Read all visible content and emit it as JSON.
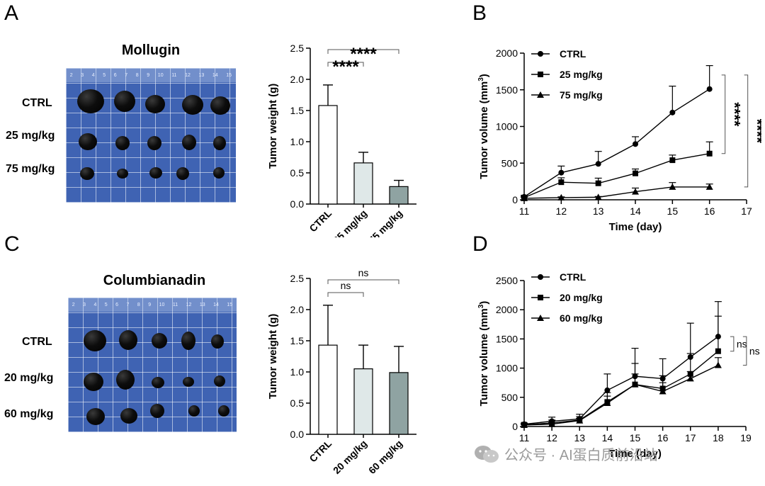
{
  "panels": {
    "A": {
      "letter": "A",
      "photo_title": "Mollugin",
      "rows": [
        "CTRL",
        "25 mg/kg",
        "75 mg/kg"
      ],
      "ruler_ticks": [
        "2",
        "3",
        "4",
        "5",
        "6",
        "7",
        "8",
        "9",
        "10",
        "11",
        "12",
        "13",
        "14",
        "15"
      ]
    },
    "B": {
      "letter": "B"
    },
    "C": {
      "letter": "C",
      "photo_title": "Columbianadin",
      "rows": [
        "CTRL",
        "20 mg/kg",
        "60 mg/kg"
      ],
      "ruler_ticks": [
        "2",
        "3",
        "4",
        "5",
        "6",
        "7",
        "8",
        "9",
        "10",
        "11",
        "12",
        "13",
        "14",
        "15"
      ]
    },
    "D": {
      "letter": "D"
    }
  },
  "watermark": "公众号 · AI蛋白质前沿站",
  "chart_data": [
    {
      "id": "A-bar",
      "type": "bar",
      "categories": [
        "CTRL",
        "25 mg/kg",
        "75 mg/kg"
      ],
      "values": [
        1.58,
        0.66,
        0.28
      ],
      "errors": [
        0.33,
        0.17,
        0.1
      ],
      "colors": [
        "#ffffff",
        "#dfe8e8",
        "#8fa3a2"
      ],
      "ylabel": "Tumor weight (g)",
      "ylim": [
        0,
        2.5
      ],
      "yticks": [
        "0.0",
        "0.5",
        "1.0",
        "1.5",
        "2.0",
        "2.5"
      ],
      "brackets": [
        {
          "from": 0,
          "to": 1,
          "label": "****",
          "level": 1
        },
        {
          "from": 0,
          "to": 2,
          "label": "****",
          "level": 2
        }
      ]
    },
    {
      "id": "B-line",
      "type": "line",
      "xlabel": "Time (day)",
      "ylabel_main": "Tumor volume (mm",
      "ylabel_sup": "3",
      "ylabel_end": ")",
      "xlim": [
        11,
        17
      ],
      "ylim": [
        0,
        2000
      ],
      "xticks": [
        "11",
        "12",
        "13",
        "14",
        "15",
        "16",
        "17"
      ],
      "yticks": [
        "0",
        "500",
        "1000",
        "1500",
        "2000"
      ],
      "legend_position": "top-left",
      "series": [
        {
          "name": "CTRL",
          "marker": "circle",
          "x": [
            11,
            12,
            13,
            14,
            15,
            16
          ],
          "y": [
            40,
            370,
            490,
            760,
            1190,
            1510
          ],
          "err": [
            20,
            90,
            170,
            100,
            360,
            320
          ]
        },
        {
          "name": "25 mg/kg",
          "marker": "square",
          "x": [
            11,
            12,
            13,
            14,
            15,
            16
          ],
          "y": [
            30,
            240,
            225,
            360,
            540,
            630
          ],
          "err": [
            15,
            60,
            70,
            60,
            70,
            160
          ]
        },
        {
          "name": "75 mg/kg",
          "marker": "triangle",
          "x": [
            11,
            12,
            13,
            14,
            15,
            16
          ],
          "y": [
            20,
            30,
            35,
            110,
            175,
            175
          ],
          "err": [
            10,
            10,
            10,
            50,
            60,
            40
          ]
        }
      ],
      "significance": [
        {
          "from_series": 0,
          "to_series": 1,
          "label": "****"
        },
        {
          "from_series": 0,
          "to_series": 2,
          "label": "****"
        }
      ]
    },
    {
      "id": "C-bar",
      "type": "bar",
      "categories": [
        "CTRL",
        "20 mg/kg",
        "60 mg/kg"
      ],
      "values": [
        1.43,
        1.05,
        0.99
      ],
      "errors": [
        0.64,
        0.38,
        0.42
      ],
      "colors": [
        "#ffffff",
        "#dfe8e8",
        "#8fa3a2"
      ],
      "ylabel": "Tumor weight (g)",
      "ylim": [
        0,
        2.5
      ],
      "yticks": [
        "0.0",
        "0.5",
        "1.0",
        "1.5",
        "2.0",
        "2.5"
      ],
      "brackets": [
        {
          "from": 0,
          "to": 1,
          "label": "ns",
          "level": 1
        },
        {
          "from": 0,
          "to": 2,
          "label": "ns",
          "level": 2
        }
      ]
    },
    {
      "id": "D-line",
      "type": "line",
      "xlabel": "Time (day)",
      "ylabel_main": "Tumor volume (mm",
      "ylabel_sup": "3",
      "ylabel_end": ")",
      "xlim": [
        11,
        19
      ],
      "ylim": [
        0,
        2500
      ],
      "xticks": [
        "11",
        "12",
        "13",
        "14",
        "15",
        "16",
        "17",
        "18",
        "19"
      ],
      "yticks": [
        "0",
        "500",
        "1000",
        "1500",
        "2000",
        "2500"
      ],
      "legend_position": "top-left",
      "series": [
        {
          "name": "CTRL",
          "marker": "circle",
          "x": [
            11,
            12,
            13,
            14,
            15,
            16,
            17,
            18
          ],
          "y": [
            40,
            90,
            130,
            620,
            860,
            820,
            1190,
            1540
          ],
          "err": [
            20,
            70,
            80,
            280,
            480,
            340,
            580,
            600
          ]
        },
        {
          "name": "20 mg/kg",
          "marker": "square",
          "x": [
            11,
            12,
            13,
            14,
            15,
            16,
            17,
            18
          ],
          "y": [
            30,
            60,
            110,
            420,
            720,
            650,
            900,
            1290
          ],
          "err": [
            15,
            50,
            60,
            160,
            360,
            220,
            350,
            600
          ]
        },
        {
          "name": "60 mg/kg",
          "marker": "triangle",
          "x": [
            11,
            12,
            13,
            14,
            15,
            16,
            17,
            18
          ],
          "y": [
            25,
            40,
            100,
            400,
            720,
            600,
            820,
            1050
          ],
          "err": [
            10,
            30,
            40,
            120,
            180,
            150,
            120,
            130
          ]
        }
      ],
      "significance": [
        {
          "from_series": 0,
          "to_series": 1,
          "label": "ns"
        },
        {
          "from_series": 0,
          "to_series": 2,
          "label": "ns"
        }
      ]
    }
  ]
}
